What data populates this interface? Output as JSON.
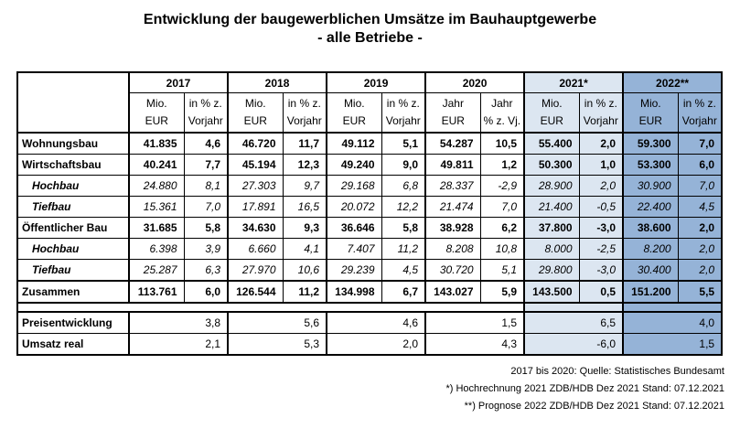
{
  "title": {
    "line1": "Entwicklung der baugewerblichen Umsätze im Bauhauptgewerbe",
    "line2": "- alle Betriebe -"
  },
  "colors": {
    "highlight_2021": "#dce6f1",
    "highlight_2022": "#95b3d7"
  },
  "table": {
    "years": [
      {
        "label": "2017",
        "sub_mio": [
          "Mio.",
          "EUR"
        ],
        "sub_pct": [
          "in % z.",
          "Vorjahr"
        ],
        "highlight": "none"
      },
      {
        "label": "2018",
        "sub_mio": [
          "Mio.",
          "EUR"
        ],
        "sub_pct": [
          "in % z.",
          "Vorjahr"
        ],
        "highlight": "none"
      },
      {
        "label": "2019",
        "sub_mio": [
          "Mio.",
          "EUR"
        ],
        "sub_pct": [
          "in % z.",
          "Vorjahr"
        ],
        "highlight": "none"
      },
      {
        "label": "2020",
        "sub_mio": [
          "Jahr",
          "EUR"
        ],
        "sub_pct": [
          "Jahr",
          "% z. Vj."
        ],
        "highlight": "none"
      },
      {
        "label": "2021*",
        "sub_mio": [
          "Mio.",
          "EUR"
        ],
        "sub_pct": [
          "in % z.",
          "Vorjahr"
        ],
        "highlight": "light"
      },
      {
        "label": "2022**",
        "sub_mio": [
          "Mio.",
          "EUR"
        ],
        "sub_pct": [
          "in % z.",
          "Vorjahr"
        ],
        "highlight": "dark"
      }
    ],
    "rows": [
      {
        "label": "Wohnungsbau",
        "style": "main",
        "separator": "solid",
        "values": [
          "41.835",
          "4,6",
          "46.720",
          "11,7",
          "49.112",
          "5,1",
          "54.287",
          "10,5",
          "55.400",
          "2,0",
          "59.300",
          "7,0"
        ]
      },
      {
        "label": "Wirtschaftsbau",
        "style": "main",
        "separator": "solid",
        "values": [
          "40.241",
          "7,7",
          "45.194",
          "12,3",
          "49.240",
          "9,0",
          "49.811",
          "1,2",
          "50.300",
          "1,0",
          "53.300",
          "6,0"
        ]
      },
      {
        "label": "Hochbau",
        "style": "sub",
        "separator": "solid",
        "values": [
          "24.880",
          "8,1",
          "27.303",
          "9,7",
          "29.168",
          "6,8",
          "28.337",
          "-2,9",
          "28.900",
          "2,0",
          "30.900",
          "7,0"
        ]
      },
      {
        "label": "Tiefbau",
        "style": "sub",
        "separator": "dotted",
        "values": [
          "15.361",
          "7,0",
          "17.891",
          "16,5",
          "20.072",
          "12,2",
          "21.474",
          "7,0",
          "21.400",
          "-0,5",
          "22.400",
          "4,5"
        ]
      },
      {
        "label": "Öffentlicher Bau",
        "style": "main",
        "separator": "solid",
        "values": [
          "31.685",
          "5,8",
          "34.630",
          "9,3",
          "36.646",
          "5,8",
          "38.928",
          "6,2",
          "37.800",
          "-3,0",
          "38.600",
          "2,0"
        ]
      },
      {
        "label": "Hochbau",
        "style": "sub",
        "separator": "solid",
        "values": [
          "6.398",
          "3,9",
          "6.660",
          "4,1",
          "7.407",
          "11,2",
          "8.208",
          "10,8",
          "8.000",
          "-2,5",
          "8.200",
          "2,0"
        ]
      },
      {
        "label": "Tiefbau",
        "style": "sub",
        "separator": "dotted",
        "values": [
          "25.287",
          "6,3",
          "27.970",
          "10,6",
          "29.239",
          "4,5",
          "30.720",
          "5,1",
          "29.800",
          "-3,0",
          "30.400",
          "2,0"
        ]
      },
      {
        "label": "Zusammen",
        "style": "main",
        "separator": "thick",
        "values": [
          "113.761",
          "6,0",
          "126.544",
          "11,2",
          "134.998",
          "6,7",
          "143.027",
          "5,9",
          "143.500",
          "0,5",
          "151.200",
          "5,5"
        ]
      }
    ],
    "bottom_rows": [
      {
        "label": "Preisentwicklung",
        "values": [
          "3,8",
          "5,6",
          "4,6",
          "1,5",
          "6,5",
          "4,0"
        ]
      },
      {
        "label": "Umsatz real",
        "values": [
          "2,1",
          "5,3",
          "2,0",
          "4,3",
          "-6,0",
          "1,5"
        ]
      }
    ]
  },
  "footnotes": [
    "2017 bis 2020: Quelle: Statistisches Bundesamt",
    "*) Hochrechnung 2021 ZDB/HDB Dez 2021 Stand: 07.12.2021",
    "**) Prognose 2022 ZDB/HDB Dez 2021 Stand: 07.12.2021"
  ]
}
